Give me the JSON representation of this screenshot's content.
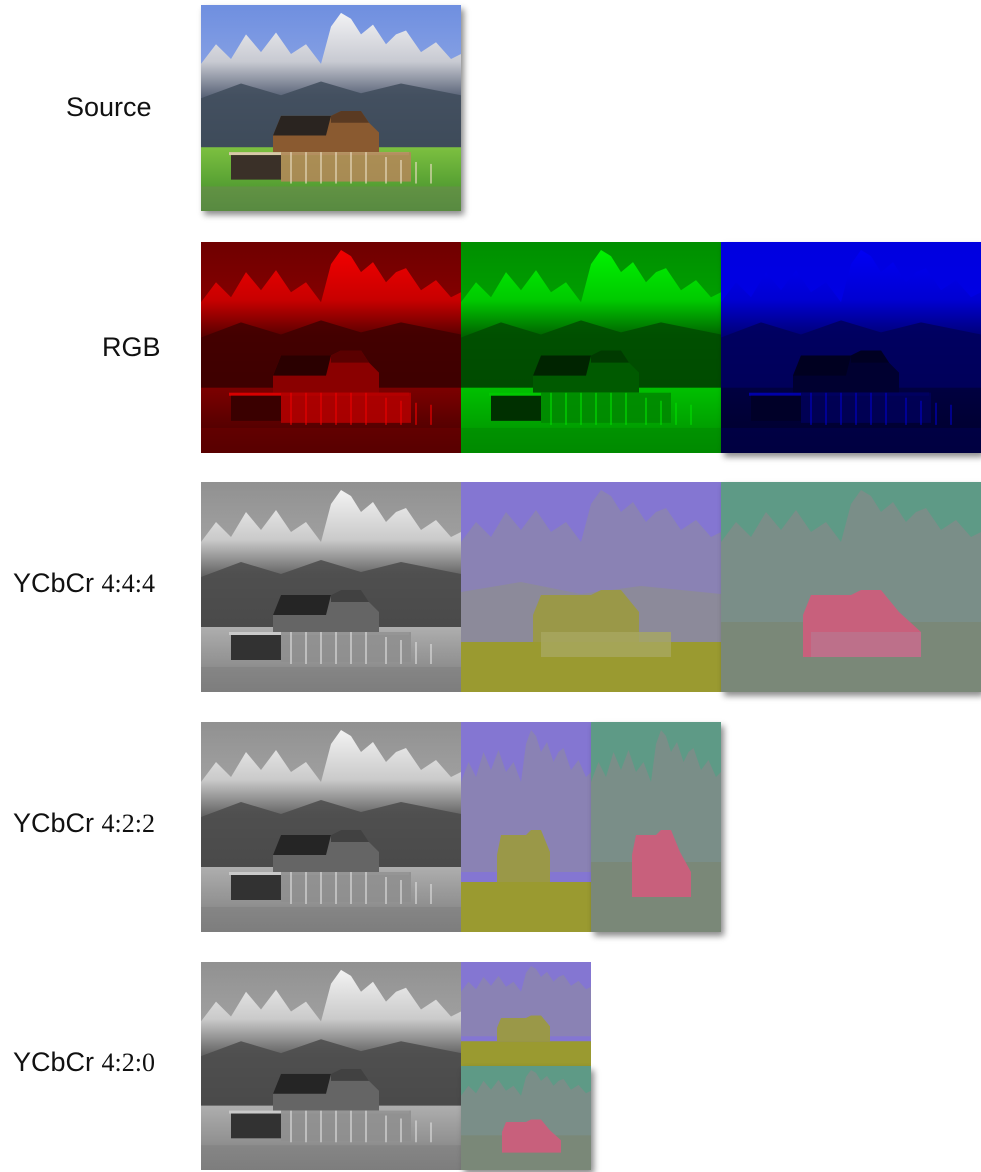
{
  "rows": [
    {
      "key": "source",
      "label": "Source",
      "ratio": ""
    },
    {
      "key": "rgb",
      "label": "RGB",
      "ratio": ""
    },
    {
      "key": "ycbcr444",
      "label": "YCbCr",
      "ratio": "4:4:4"
    },
    {
      "key": "ycbcr422",
      "label": "YCbCr",
      "ratio": "4:2:2"
    },
    {
      "key": "ycbcr420",
      "label": "YCbCr",
      "ratio": "4:2:0"
    }
  ],
  "panels": {
    "source": [
      "full-color"
    ],
    "rgb": [
      "red-channel",
      "green-channel",
      "blue-channel"
    ],
    "ycbcr444": [
      "luma",
      "cb-chroma",
      "cr-chroma"
    ],
    "ycbcr422": [
      "luma",
      "cb-chroma-half-width",
      "cr-chroma-half-width"
    ],
    "ycbcr420": [
      "luma",
      "cb-chroma-quarter",
      "cr-chroma-quarter"
    ]
  },
  "colors": {
    "red": "#c00000",
    "green": "#00b000",
    "blue": "#0000c8",
    "cb_sky": "#8476d2",
    "cb_ground": "#9a9a30",
    "cr_sky": "#5e9a86",
    "cr_barn": "#c8607c"
  }
}
